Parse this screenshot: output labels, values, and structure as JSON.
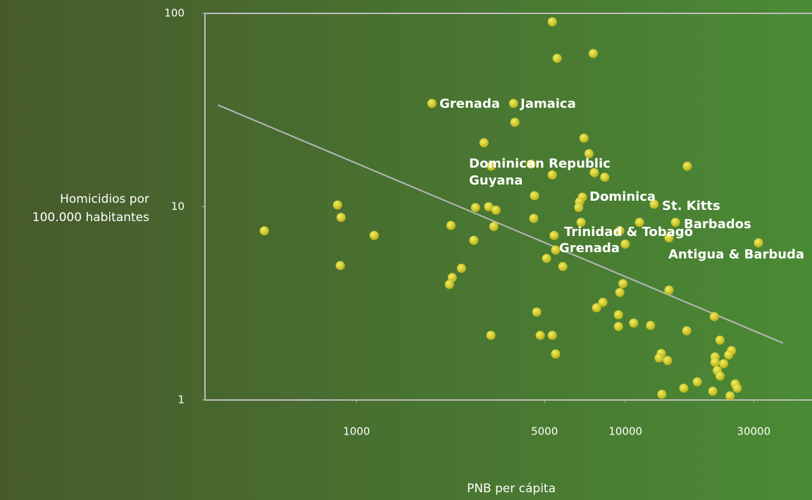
{
  "chart_data": {
    "type": "scatter",
    "xlabel": "PNB per cápita",
    "ylabel": [
      "Homicidios por",
      "100.000 habitantes"
    ],
    "xlog": true,
    "ylog": true,
    "xlim": [
      273,
      49400
    ],
    "ylim": [
      1,
      100
    ],
    "xticks": [
      1000,
      5000,
      10000,
      30000
    ],
    "yticks": [
      1,
      10,
      100
    ],
    "color": "#c9c21e",
    "trendline": {
      "color": "#b8b8b8",
      "x": [
        305,
        38550
      ],
      "y": [
        33.6,
        1.97
      ]
    },
    "x": [
      5345,
      7590,
      5570,
      1906,
      3837,
      3880,
      2979,
      7010,
      7320,
      4457,
      3170,
      5345,
      7660,
      8375,
      16980,
      4590,
      6920,
      6750,
      6700,
      12790,
      850,
      876,
      2770,
      3100,
      3300,
      4560,
      454,
      1163,
      2244,
      3240,
      6840,
      11280,
      15350,
      5430,
      9530,
      14520,
      9980,
      31250,
      2730,
      5500,
      5090,
      5850,
      870,
      2455,
      2270,
      2215,
      9790,
      9530,
      14520,
      8240,
      7810,
      4680,
      9420,
      21400,
      10730,
      12400,
      9420,
      3160,
      4820,
      5345,
      16900,
      22460,
      5500,
      13580,
      13340,
      14340,
      21530,
      21530,
      24800,
      24200,
      23200,
      21960,
      22480,
      18500,
      16480,
      25600,
      26050,
      21130,
      13660,
      24500
    ],
    "values": [
      90.4,
      62,
      58.5,
      34.2,
      34.2,
      27.3,
      21.4,
      22.6,
      18.8,
      16.6,
      16.2,
      14.6,
      15.0,
      14.2,
      16.2,
      11.4,
      11.2,
      10.6,
      9.9,
      10.3,
      10.2,
      8.8,
      9.9,
      10.0,
      9.6,
      8.7,
      7.5,
      7.1,
      8.0,
      7.9,
      8.3,
      8.3,
      8.3,
      7.1,
      7.5,
      6.9,
      6.4,
      6.5,
      6.7,
      5.97,
      5.4,
      4.9,
      4.96,
      4.8,
      4.3,
      3.96,
      4.0,
      3.6,
      3.7,
      3.2,
      3.0,
      2.85,
      2.76,
      2.7,
      2.5,
      2.43,
      2.4,
      2.16,
      2.16,
      2.16,
      2.28,
      2.04,
      1.73,
      1.74,
      1.65,
      1.6,
      1.67,
      1.57,
      1.8,
      1.71,
      1.54,
      1.42,
      1.33,
      1.24,
      1.15,
      1.21,
      1.15,
      1.11,
      1.07,
      1.05
    ],
    "annotations": [
      "Grenada",
      "Jamaica",
      "Dominican Republic",
      "Guyana",
      "Dominica",
      "St. Kitts",
      "Barbados",
      "Trinidad & Tobago",
      "Grenada",
      "Antigua & Barbuda"
    ]
  }
}
